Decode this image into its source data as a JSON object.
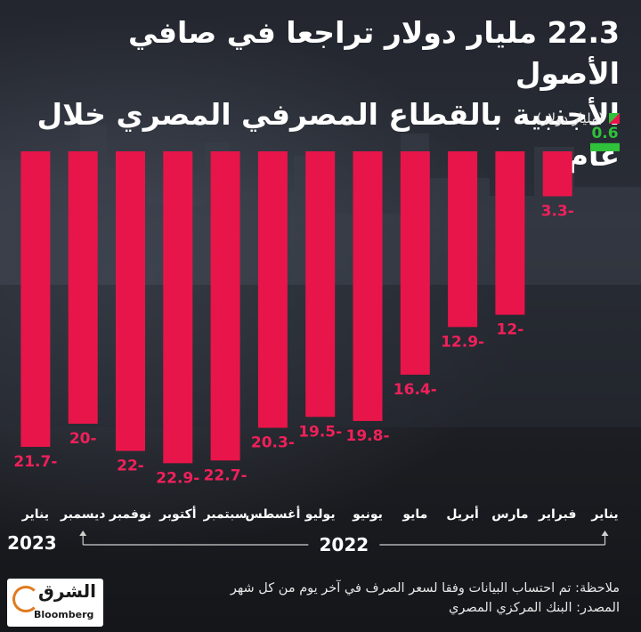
{
  "title_line1": "22.3 مليار دولار تراجعا في صافي الأصول",
  "title_line2": "الأجنبية بالقطاع المصرفي المصري خلال عام",
  "unit_label": "(مليار دولار)",
  "colors": {
    "positive": "#2fc23a",
    "negative": "#e8154a",
    "label_negative": "#f0205a"
  },
  "note_line": "ملاحظة: تم احتساب البيانات وفقا لسعر الصرف في آخر يوم من كل شهر",
  "source_line": "المصدر: البنك المركزي المصري",
  "logo": {
    "arabic": "الشرق",
    "latin": "Bloomberg"
  },
  "chart_data": {
    "type": "bar",
    "categories": [
      "يناير",
      "فبراير",
      "مارس",
      "أبريل",
      "مايو",
      "يونيو",
      "يوليو",
      "أغسطس",
      "سبتمبر",
      "أكتوبر",
      "نوفمبر",
      "ديسمبر",
      "يناير"
    ],
    "values": [
      0.6,
      -3.3,
      -12,
      -12.9,
      -16.4,
      -19.8,
      -19.5,
      -20.3,
      -22.7,
      -22.9,
      -22,
      -20,
      -21.7
    ],
    "value_labels": [
      "0.6",
      "3.3-",
      "12-",
      "12.9-",
      "16.4-",
      "19.8-",
      "19.5-",
      "20.3-",
      "22.7-",
      "22.9-",
      "22-",
      "20-",
      "21.7-"
    ],
    "year_groups": [
      {
        "label": "2022",
        "from": 0,
        "to": 11
      },
      {
        "label": "2023",
        "from": 12,
        "to": 12
      }
    ],
    "ylim": [
      -23,
      1
    ],
    "grid": false,
    "xlabel": "",
    "ylabel": ""
  }
}
